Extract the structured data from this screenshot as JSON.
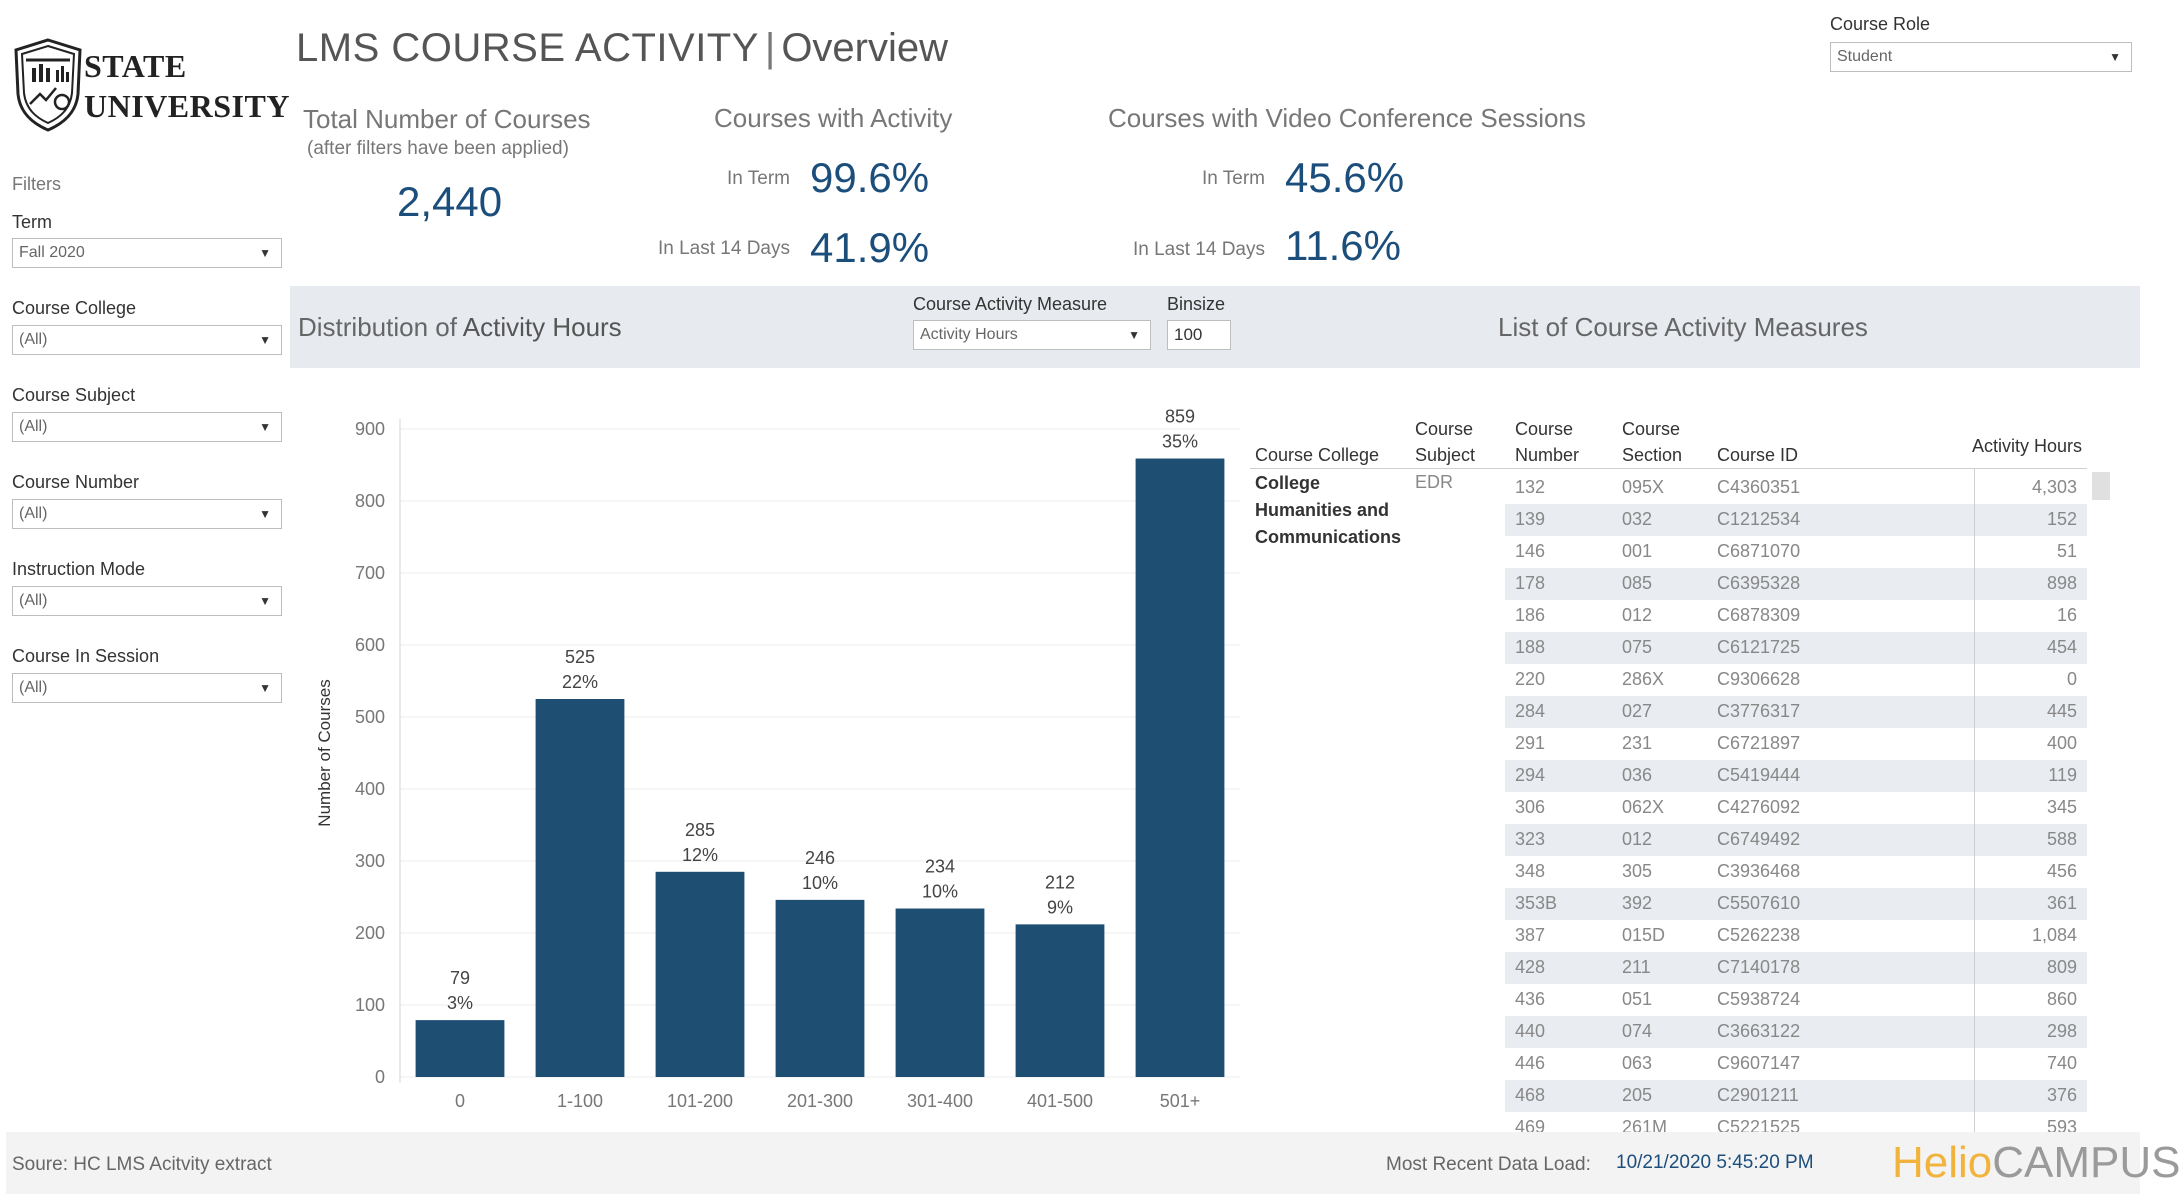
{
  "logo": {
    "line1": "STATE",
    "line2": "UNIVERSITY"
  },
  "header": {
    "title_main": "LMS COURSE ACTIVITY",
    "separator": "|",
    "title_sub": "Overview"
  },
  "course_role": {
    "label": "Course Role",
    "value": "Student"
  },
  "filters": {
    "heading": "Filters",
    "items": [
      {
        "label": "Term",
        "value": "Fall 2020"
      },
      {
        "label": "Course College",
        "value": "(All)"
      },
      {
        "label": "Course Subject",
        "value": "(All)"
      },
      {
        "label": "Course Number",
        "value": "(All)"
      },
      {
        "label": "Instruction Mode",
        "value": "(All)"
      },
      {
        "label": "Course In Session",
        "value": "(All)"
      }
    ]
  },
  "kpis": {
    "total": {
      "title": "Total Number of Courses",
      "note": "(after filters have been applied)",
      "value": "2,440"
    },
    "activity": {
      "title": "Courses with  Activity",
      "in_term_label": "In Term",
      "in_term_value": "99.6%",
      "last14_label": "In Last 14 Days",
      "last14_value": "41.9%"
    },
    "video": {
      "title": "Courses with Video Conference Sessions",
      "in_term_label": "In Term",
      "in_term_value": "45.6%",
      "last14_label": "In Last 14 Days",
      "last14_value": "11.6%"
    }
  },
  "band": {
    "dist_title_prefix": "Distribution of",
    "dist_title_bold": "Activity Hours",
    "measure_label": "Course Activity Measure",
    "measure_value": "Activity Hours",
    "binsize_label": "Binsize",
    "binsize_value": "100",
    "list_title": "List of Course Activity Measures"
  },
  "chart_data": {
    "type": "bar",
    "categories": [
      "0",
      "1-100",
      "101-200",
      "201-300",
      "301-400",
      "401-500",
      "501+"
    ],
    "values": [
      79,
      525,
      285,
      246,
      234,
      212,
      859
    ],
    "percent_labels": [
      "3%",
      "22%",
      "12%",
      "10%",
      "10%",
      "9%",
      "35%"
    ],
    "ylabel": "Number of Courses",
    "xlabel": "",
    "ylim": [
      0,
      900
    ],
    "yticks": [
      0,
      100,
      200,
      300,
      400,
      500,
      600,
      700,
      800,
      900
    ],
    "bar_color": "#1f4e73",
    "grid": true
  },
  "table": {
    "headers": {
      "college": "Course College",
      "subject_1": "Course",
      "subject_2": "Subject",
      "number_1": "Course",
      "number_2": "Number",
      "section_1": "Course",
      "section_2": "Section",
      "id": "Course ID",
      "hours": "Activity Hours"
    },
    "college": [
      "College",
      "Humanities and",
      "Communications"
    ],
    "subject": "EDR",
    "rows": [
      {
        "number": "132",
        "section": "095X",
        "id": "C4360351",
        "hours": "4,303"
      },
      {
        "number": "139",
        "section": "032",
        "id": "C1212534",
        "hours": "152"
      },
      {
        "number": "146",
        "section": "001",
        "id": "C6871070",
        "hours": "51"
      },
      {
        "number": "178",
        "section": "085",
        "id": "C6395328",
        "hours": "898"
      },
      {
        "number": "186",
        "section": "012",
        "id": "C6878309",
        "hours": "16"
      },
      {
        "number": "188",
        "section": "075",
        "id": "C6121725",
        "hours": "454"
      },
      {
        "number": "220",
        "section": "286X",
        "id": "C9306628",
        "hours": "0"
      },
      {
        "number": "284",
        "section": "027",
        "id": "C3776317",
        "hours": "445"
      },
      {
        "number": "291",
        "section": "231",
        "id": "C6721897",
        "hours": "400"
      },
      {
        "number": "294",
        "section": "036",
        "id": "C5419444",
        "hours": "119"
      },
      {
        "number": "306",
        "section": "062X",
        "id": "C4276092",
        "hours": "345"
      },
      {
        "number": "323",
        "section": "012",
        "id": "C6749492",
        "hours": "588"
      },
      {
        "number": "348",
        "section": "305",
        "id": "C3936468",
        "hours": "456"
      },
      {
        "number": "353B",
        "section": "392",
        "id": "C5507610",
        "hours": "361"
      },
      {
        "number": "387",
        "section": "015D",
        "id": "C5262238",
        "hours": "1,084"
      },
      {
        "number": "428",
        "section": "211",
        "id": "C7140178",
        "hours": "809"
      },
      {
        "number": "436",
        "section": "051",
        "id": "C5938724",
        "hours": "860"
      },
      {
        "number": "440",
        "section": "074",
        "id": "C3663122",
        "hours": "298"
      },
      {
        "number": "446",
        "section": "063",
        "id": "C9607147",
        "hours": "740"
      },
      {
        "number": "468",
        "section": "205",
        "id": "C2901211",
        "hours": "376"
      },
      {
        "number": "469",
        "section": "261M",
        "id": "C5221525",
        "hours": "593"
      }
    ]
  },
  "footer": {
    "source": "Soure: HC LMS Acitvity extract",
    "load_label": "Most Recent Data Load:",
    "load_value": "10/21/2020 5:45:20 PM",
    "brand_a": "Helio",
    "brand_b": "CAMPUS"
  },
  "colors": {
    "accent": "#1c4e7c",
    "bar": "#1f4e73",
    "band": "#e7ebef",
    "brand_orange": "#f2b33d"
  }
}
